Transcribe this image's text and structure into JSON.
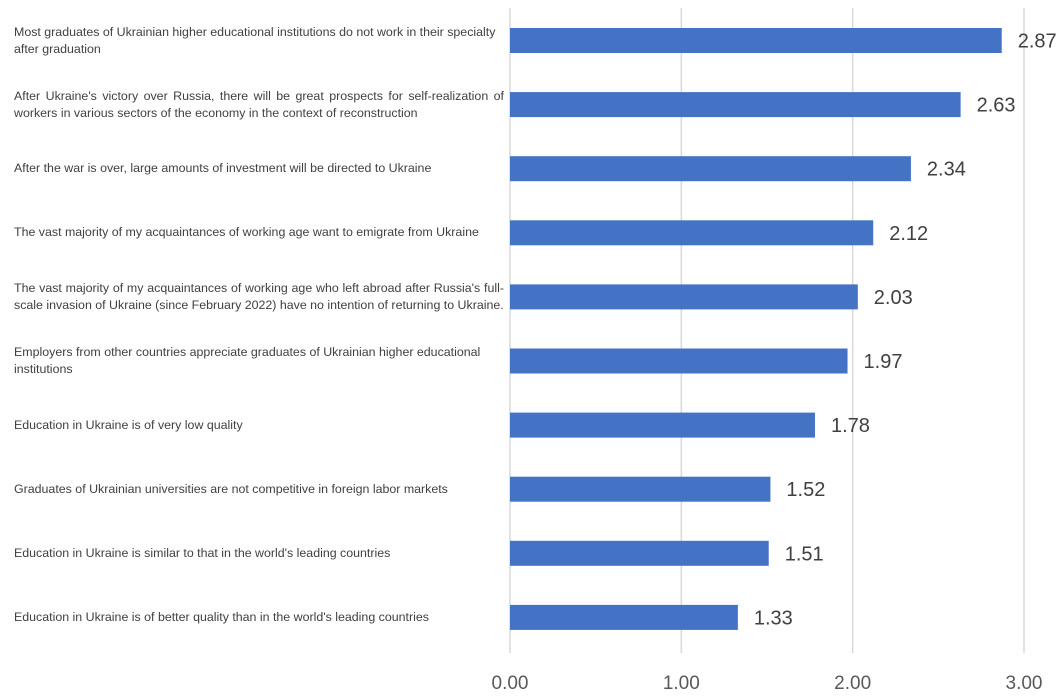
{
  "chart_data": {
    "type": "bar",
    "orientation": "horizontal",
    "categories": [
      "Most graduates of Ukrainian higher educational institutions do not work in their specialty after graduation",
      "After Ukraine's victory over Russia, there will be great prospects for self-realization of workers in various sectors of the economy in the context of reconstruction",
      "After the war is over, large amounts of investment will be directed to Ukraine",
      "The vast majority of my acquaintances of working age want to emigrate from Ukraine",
      "The vast majority of my acquaintances of working age who left abroad after Russia's full-scale invasion of Ukraine (since February 2022) have no intention of returning to Ukraine.",
      "Employers from other countries appreciate graduates of Ukrainian higher educational institutions",
      "Education in Ukraine is of very low quality",
      "Graduates of Ukrainian universities are not competitive in foreign labor markets",
      "Education in Ukraine is similar to that in the world's leading countries",
      "Education in Ukraine is of better quality than in the world's leading countries"
    ],
    "values": [
      2.87,
      2.63,
      2.34,
      2.12,
      2.03,
      1.97,
      1.78,
      1.52,
      1.51,
      1.33
    ],
    "value_labels": [
      "2.87",
      "2.63",
      "2.34",
      "2.12",
      "2.03",
      "1.97",
      "1.78",
      "1.52",
      "1.51",
      "1.33"
    ],
    "xlim": [
      0,
      3
    ],
    "xticks": [
      0,
      1,
      2,
      3
    ],
    "xtick_labels": [
      "0.00",
      "1.00",
      "2.00",
      "3.00"
    ],
    "grid": "vertical",
    "colors": {
      "bar": "#4472C4",
      "grid": "#D9D9D9",
      "text": "#404040"
    }
  }
}
